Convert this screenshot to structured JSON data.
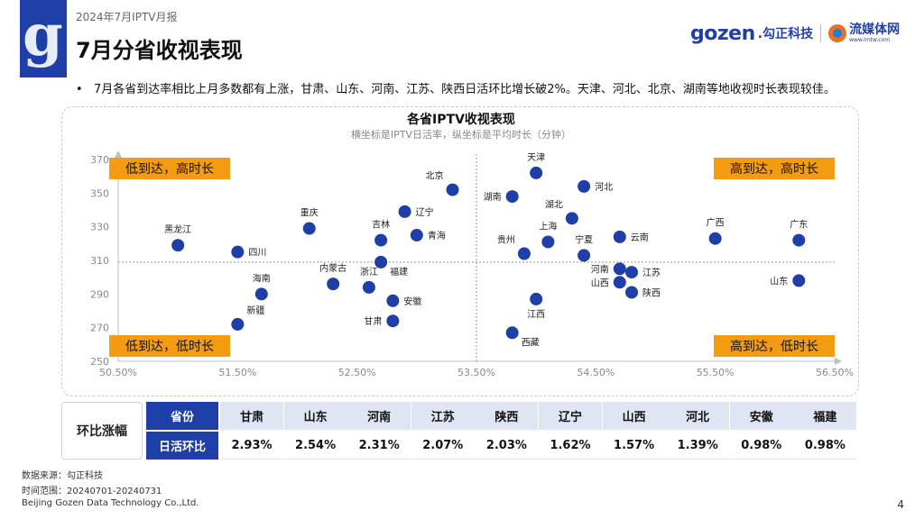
{
  "header": {
    "report_label": "2024年7月IPTV月报",
    "title": "7月分省收视表现",
    "brand": {
      "name_en": "gozen",
      "name_cn": ".勾正科技",
      "partner_cn": "流媒体网",
      "partner_url": "www.lmtw.com"
    }
  },
  "bullet": "7月各省到达率相比上月多数都有上涨，甘肃、山东、河南、江苏、陕西日活环比增长破2%。天津、河北、北京、湖南等地收视时长表现较佳。",
  "chart_data": {
    "type": "scatter",
    "title": "各省IPTV收视表现",
    "subtitle": "横坐标是IPTV日活率，纵坐标是平均时长（分钟）",
    "xlim": [
      50.5,
      56.5
    ],
    "ylim": [
      250,
      370
    ],
    "x_ticks": [
      "50.50%",
      "51.50%",
      "52.50%",
      "53.50%",
      "54.50%",
      "55.50%",
      "56.50%"
    ],
    "x_tick_values": [
      50.5,
      51.5,
      52.5,
      53.5,
      54.5,
      55.5,
      56.5
    ],
    "y_ticks": [
      "250",
      "270",
      "290",
      "310",
      "330",
      "350",
      "370"
    ],
    "y_tick_values": [
      250,
      270,
      290,
      310,
      330,
      350,
      370
    ],
    "ref_x": 53.5,
    "ref_y": 309,
    "quadrants": {
      "top_left": "低到达，高时长",
      "top_right": "高到达，高时长",
      "bottom_left": "低到达，低时长",
      "bottom_right": "高到达，低时长"
    },
    "point_color": "#1f3fa8",
    "quadrant_label_color": "#f39c12",
    "points": [
      {
        "name": "天津",
        "x": 54.0,
        "y": 362,
        "label_pos": "top"
      },
      {
        "name": "北京",
        "x": 53.3,
        "y": 352,
        "label_pos": "top-left"
      },
      {
        "name": "河北",
        "x": 54.4,
        "y": 354,
        "label_pos": "right"
      },
      {
        "name": "湖南",
        "x": 53.8,
        "y": 348,
        "label_pos": "left"
      },
      {
        "name": "辽宁",
        "x": 52.9,
        "y": 339,
        "label_pos": "right"
      },
      {
        "name": "湖北",
        "x": 54.3,
        "y": 335,
        "label_pos": "top-left"
      },
      {
        "name": "重庆",
        "x": 52.1,
        "y": 329,
        "label_pos": "top"
      },
      {
        "name": "吉林",
        "x": 52.7,
        "y": 322,
        "label_pos": "top"
      },
      {
        "name": "青海",
        "x": 53.0,
        "y": 325,
        "label_pos": "right"
      },
      {
        "name": "云南",
        "x": 54.7,
        "y": 324,
        "label_pos": "right"
      },
      {
        "name": "上海",
        "x": 54.1,
        "y": 321,
        "label_pos": "top"
      },
      {
        "name": "贵州",
        "x": 53.9,
        "y": 314,
        "label_pos": "top-left"
      },
      {
        "name": "宁夏",
        "x": 54.4,
        "y": 313,
        "label_pos": "top"
      },
      {
        "name": "广西",
        "x": 55.5,
        "y": 323,
        "label_pos": "top"
      },
      {
        "name": "广东",
        "x": 56.2,
        "y": 322,
        "label_pos": "top"
      },
      {
        "name": "黑龙江",
        "x": 51.0,
        "y": 319,
        "label_pos": "top"
      },
      {
        "name": "四川",
        "x": 51.5,
        "y": 315,
        "label_pos": "right"
      },
      {
        "name": "福建",
        "x": 52.7,
        "y": 309,
        "label_pos": "bottom-right"
      },
      {
        "name": "河南",
        "x": 54.7,
        "y": 305,
        "label_pos": "left"
      },
      {
        "name": "江苏",
        "x": 54.8,
        "y": 303,
        "label_pos": "right"
      },
      {
        "name": "内蒙古",
        "x": 52.3,
        "y": 296,
        "label_pos": "top"
      },
      {
        "name": "浙江",
        "x": 52.6,
        "y": 294,
        "label_pos": "top"
      },
      {
        "name": "海南",
        "x": 51.7,
        "y": 290,
        "label_pos": "top"
      },
      {
        "name": "山西",
        "x": 54.7,
        "y": 297,
        "label_pos": "left"
      },
      {
        "name": "陕西",
        "x": 54.8,
        "y": 291,
        "label_pos": "right"
      },
      {
        "name": "山东",
        "x": 56.2,
        "y": 298,
        "label_pos": "left"
      },
      {
        "name": "安徽",
        "x": 52.8,
        "y": 286,
        "label_pos": "right"
      },
      {
        "name": "江西",
        "x": 54.0,
        "y": 287,
        "label_pos": "bottom"
      },
      {
        "name": "甘肃",
        "x": 52.8,
        "y": 274,
        "label_pos": "left"
      },
      {
        "name": "新疆",
        "x": 51.5,
        "y": 272,
        "label_pos": "top-right"
      },
      {
        "name": "西藏",
        "x": 53.8,
        "y": 267,
        "label_pos": "bottom-right"
      }
    ]
  },
  "table": {
    "row_label": "环比涨幅",
    "header_label": "省份",
    "value_label": "日活环比",
    "provinces": [
      "甘肃",
      "山东",
      "河南",
      "江苏",
      "陕西",
      "辽宁",
      "山西",
      "河北",
      "安徽",
      "福建"
    ],
    "values": [
      "2.93%",
      "2.54%",
      "2.31%",
      "2.07%",
      "2.03%",
      "1.62%",
      "1.57%",
      "1.39%",
      "0.98%",
      "0.98%"
    ]
  },
  "footer": {
    "source": "数据来源：勾正科技",
    "range": "时间范围：20240701-20240731",
    "company": "Beijing Gozen Data Technology Co.,Ltd.",
    "page": "4"
  }
}
